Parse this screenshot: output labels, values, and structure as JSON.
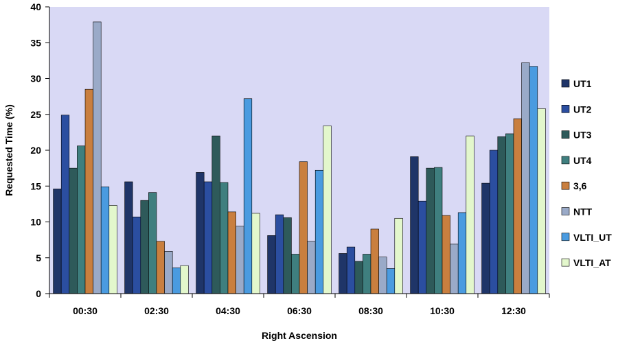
{
  "chart_data": {
    "type": "bar",
    "title": "",
    "xlabel": "Right Ascension",
    "ylabel": "Requested Time (%)",
    "ylim": [
      0,
      40
    ],
    "yticks": [
      0,
      5,
      10,
      15,
      20,
      25,
      30,
      35,
      40
    ],
    "grid": false,
    "legend_position": "right",
    "plot_background": "#d9d9f5",
    "categories": [
      "00:30",
      "02:30",
      "04:30",
      "06:30",
      "08:30",
      "10:30",
      "12:30"
    ],
    "series": [
      {
        "name": "UT1",
        "color": "#1f3568",
        "values": [
          14.6,
          15.6,
          16.9,
          8.1,
          5.6,
          19.1,
          15.4
        ]
      },
      {
        "name": "UT2",
        "color": "#2b4ea0",
        "values": [
          24.9,
          10.7,
          15.6,
          11.0,
          6.5,
          12.9,
          20.0
        ]
      },
      {
        "name": "UT3",
        "color": "#2e5a5a",
        "values": [
          17.5,
          13.0,
          22.0,
          10.6,
          4.5,
          17.5,
          21.9
        ]
      },
      {
        "name": "UT4",
        "color": "#3f7f7f",
        "values": [
          20.6,
          14.1,
          15.5,
          5.5,
          5.5,
          17.6,
          22.3
        ]
      },
      {
        "name": "3,6",
        "color": "#c97f3f",
        "values": [
          28.5,
          7.3,
          11.4,
          18.4,
          9.0,
          10.9,
          24.4
        ]
      },
      {
        "name": "NTT",
        "color": "#9aaac8",
        "values": [
          37.9,
          5.9,
          9.4,
          7.3,
          5.1,
          6.9,
          32.2
        ]
      },
      {
        "name": "VLTI_UT",
        "color": "#4a9be0",
        "values": [
          14.9,
          3.6,
          27.2,
          17.2,
          3.5,
          11.3,
          31.7
        ]
      },
      {
        "name": "VLTI_AT",
        "color": "#e3f7cc",
        "values": [
          12.3,
          3.9,
          11.2,
          23.4,
          10.5,
          22.0,
          25.8
        ]
      }
    ]
  }
}
